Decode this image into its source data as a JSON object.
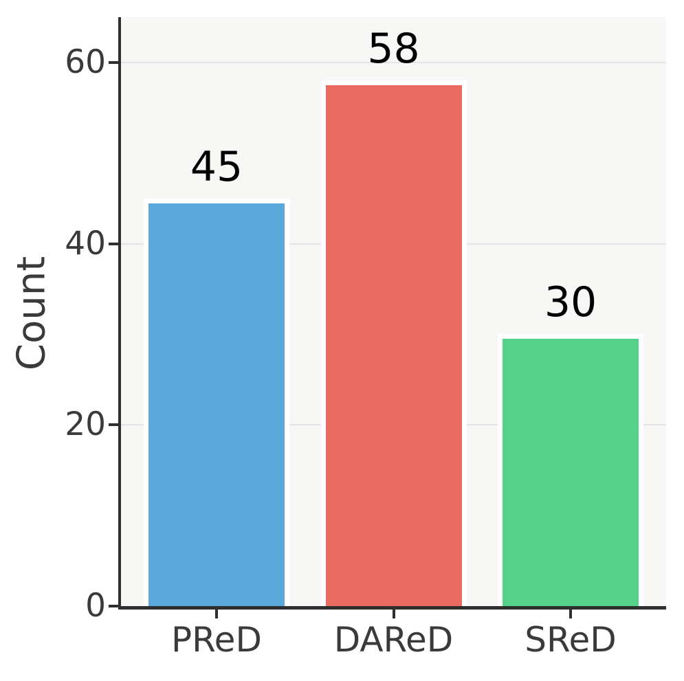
{
  "chart_data": {
    "type": "bar",
    "categories": [
      "PReD",
      "DAReD",
      "SReD"
    ],
    "values": [
      45,
      58,
      30
    ],
    "bar_value_labels": [
      "45",
      "58",
      "30"
    ],
    "bar_colors": [
      "#5aa8dc",
      "#ea6b60",
      "#54d289"
    ],
    "title": "",
    "xlabel": "",
    "ylabel": "Count",
    "ylim": [
      0,
      65
    ],
    "yticks": [
      0,
      20,
      40,
      60
    ],
    "ytick_labels": [
      "0",
      "20",
      "40",
      "60"
    ],
    "grid": "horizontal gridlines on",
    "legend": "none"
  },
  "style": {
    "figure_background": "#ffffff",
    "plot_background": "#f7f7f6",
    "gridline_color": "#e4e4e4",
    "spine_color": "#2f2f2f",
    "tick_text_color": "#3a3a3a",
    "value_label_color": "#000000",
    "bar_edge_color": "#ffffff"
  }
}
